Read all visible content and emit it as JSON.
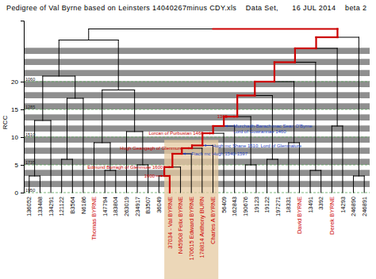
{
  "chart_data": {
    "type": "dendrogram",
    "title": "Pedigree of Val Byrne based on Leinsters 14040267minus CDY.xls    Data Set,      16 JUL 2014    beta 2",
    "y_label": "RCC",
    "ylim": [
      0,
      31
    ],
    "yticks": [
      0,
      5,
      10,
      15,
      20
    ],
    "year_labels": [
      {
        "value": 0,
        "label": "1950"
      },
      {
        "value": 5,
        "label": "1735"
      },
      {
        "value": 10,
        "label": "1510"
      },
      {
        "value": 15,
        "label": "1285"
      },
      {
        "value": 20,
        "label": "1060"
      }
    ],
    "grid": true,
    "tree": {
      "height": 29.5,
      "color": "#cc0000",
      "children": [
        {
          "height": 27.5,
          "children": [
            {
              "height": 21,
              "children": [
                {
                  "height": 13,
                  "children": [
                    {
                      "height": 3,
                      "children": [
                        {
                          "label": "136052"
                        },
                        {
                          "label": "133488"
                        }
                      ]
                    },
                    {
                      "label": "134291"
                    }
                  ]
                },
                {
                  "height": 17,
                  "children": [
                    {
                      "height": 6,
                      "children": [
                        {
                          "label": "121122"
                        },
                        {
                          "label": "B3564"
                        }
                      ]
                    },
                    {
                      "label": "N6186"
                    }
                  ]
                }
              ]
            },
            {
              "height": 18.5,
              "children": [
                {
                  "height": 9,
                  "children": [
                    {
                      "label": "Thomas BYRNE",
                      "color": "#cc0000"
                    },
                    {
                      "height": 4,
                      "children": [
                        {
                          "label": "147794"
                        },
                        {
                          "label": "183804"
                        }
                      ]
                    }
                  ]
                },
                {
                  "height": 11,
                  "children": [
                    {
                      "label": "263019"
                    },
                    {
                      "height": 5,
                      "children": [
                        {
                          "label": "234917"
                        },
                        {
                          "label": "B3507"
                        }
                      ]
                    }
                  ]
                }
              ]
            }
          ]
        },
        {
          "height": 28,
          "color": "#cc0000",
          "children": [
            {
              "height": 26,
              "color": "#cc0000",
              "children": [
                {
                  "height": 23.5,
                  "color": "#cc0000",
                  "children": [
                    {
                      "height": 20,
                      "color": "#cc0000",
                      "children": [
                        {
                          "height": 17.5,
                          "color": "#cc0000",
                          "children": [
                            {
                              "height": 13.7,
                              "color": "#cc0000",
                              "note": {
                                "text": [
                                  "1305"
                                ],
                                "color": "#cc0000"
                              },
                              "children": [
                                {
                                  "height": 12,
                                  "color": "#cc0000",
                                  "note": {
                                    "text": [
                                      "Murchadh-Barach mac Sean O'Byrne",
                                      "Lord of Gowrannae 1460"
                                    ],
                                    "color": "#1f3fbf"
                                  },
                                  "children": [
                                    {
                                      "height": 10.7,
                                      "color": "#cc0000",
                                      "note": {
                                        "text": [
                                          "Lorcan of Purbustan 1460"
                                        ],
                                        "color": "#cc0000"
                                      },
                                      "children": [
                                        {
                                          "height": 8.5,
                                          "color": "#cc0000",
                                          "note": {
                                            "text": [
                                              "Hugh mc Shane 1510, Lord of Glenmalure"
                                            ],
                                            "color": "#1f3fbf"
                                          },
                                          "children": [
                                            {
                                              "height": 8,
                                              "color": "#cc0000",
                                              "note": {
                                                "text": [
                                                  "Hugh Geangagh of Glenmure"
                                                ],
                                                "color": "#cc0000"
                                              },
                                              "children": [
                                                {
                                                  "height": 7,
                                                  "color": "#cc0000",
                                                  "note": {
                                                    "text": [
                                                      "Fiach mc Hugh 1540-1597"
                                                    ],
                                                    "color": "#1f3fbf"
                                                  },
                                                  "children": [
                                                    {
                                                      "height": 4.6,
                                                      "color": "#cc0000",
                                                      "note": {
                                                        "text": [
                                                          "Edmund Burragh of Glenmure 1600"
                                                        ],
                                                        "color": "#cc0000"
                                                      },
                                                      "children": [
                                                        {
                                                          "height": 3,
                                                          "color": "#cc0000",
                                                          "note": {
                                                            "text": [
                                                              "1600"
                                                            ],
                                                            "color": "#cc0000"
                                                          },
                                                          "children": [
                                                            {
                                                              "label": "36049"
                                                            },
                                                            {
                                                              "label": "37034 - Val BYRNE",
                                                              "color": "#cc0000"
                                                            }
                                                          ]
                                                        },
                                                        {
                                                          "label": "N45908 Felix BYRNE",
                                                          "color": "#cc0000"
                                                        }
                                                      ]
                                                    },
                                                    {
                                                      "label": "170615 Edward BYRNE",
                                                      "color": "#cc0000"
                                                    }
                                                  ]
                                                },
                                                {
                                                  "label": "178814 Anthony BURN",
                                                  "color": "#cc0000"
                                                }
                                              ]
                                            },
                                            {
                                              "label": "Charles A BYRNE",
                                              "color": "#cc0000"
                                            }
                                          ]
                                        },
                                        {
                                          "label": "56409"
                                        }
                                      ]
                                    },
                                    {
                                      "label": "162843"
                                    }
                                  ]
                                },
                                {
                                  "height": 5,
                                  "children": [
                                    {
                                      "label": "190676"
                                    },
                                    {
                                      "label": "19123"
                                    }
                                  ]
                                }
                              ]
                            },
                            {
                              "height": 6,
                              "children": [
                                {
                                  "label": "19122"
                                },
                                {
                                  "label": "197271"
                                }
                              ]
                            }
                          ]
                        },
                        {
                          "height": 9,
                          "children": [
                            {
                              "label": "18331"
                            },
                            {
                              "label": "David BYRNE",
                              "color": "#cc0000"
                            }
                          ]
                        }
                      ]
                    },
                    {
                      "height": 4,
                      "children": [
                        {
                          "label": "13491"
                        },
                        {
                          "label": "3392"
                        }
                      ]
                    }
                  ]
                },
                {
                  "height": 12,
                  "children": [
                    {
                      "label": "Derek BYRNE",
                      "color": "#cc0000"
                    },
                    {
                      "label": "14293"
                    }
                  ]
                }
              ]
            },
            {
              "height": 3,
              "children": [
                {
                  "label": "246890"
                },
                {
                  "label": "246891"
                }
              ]
            }
          ]
        }
      ]
    }
  }
}
